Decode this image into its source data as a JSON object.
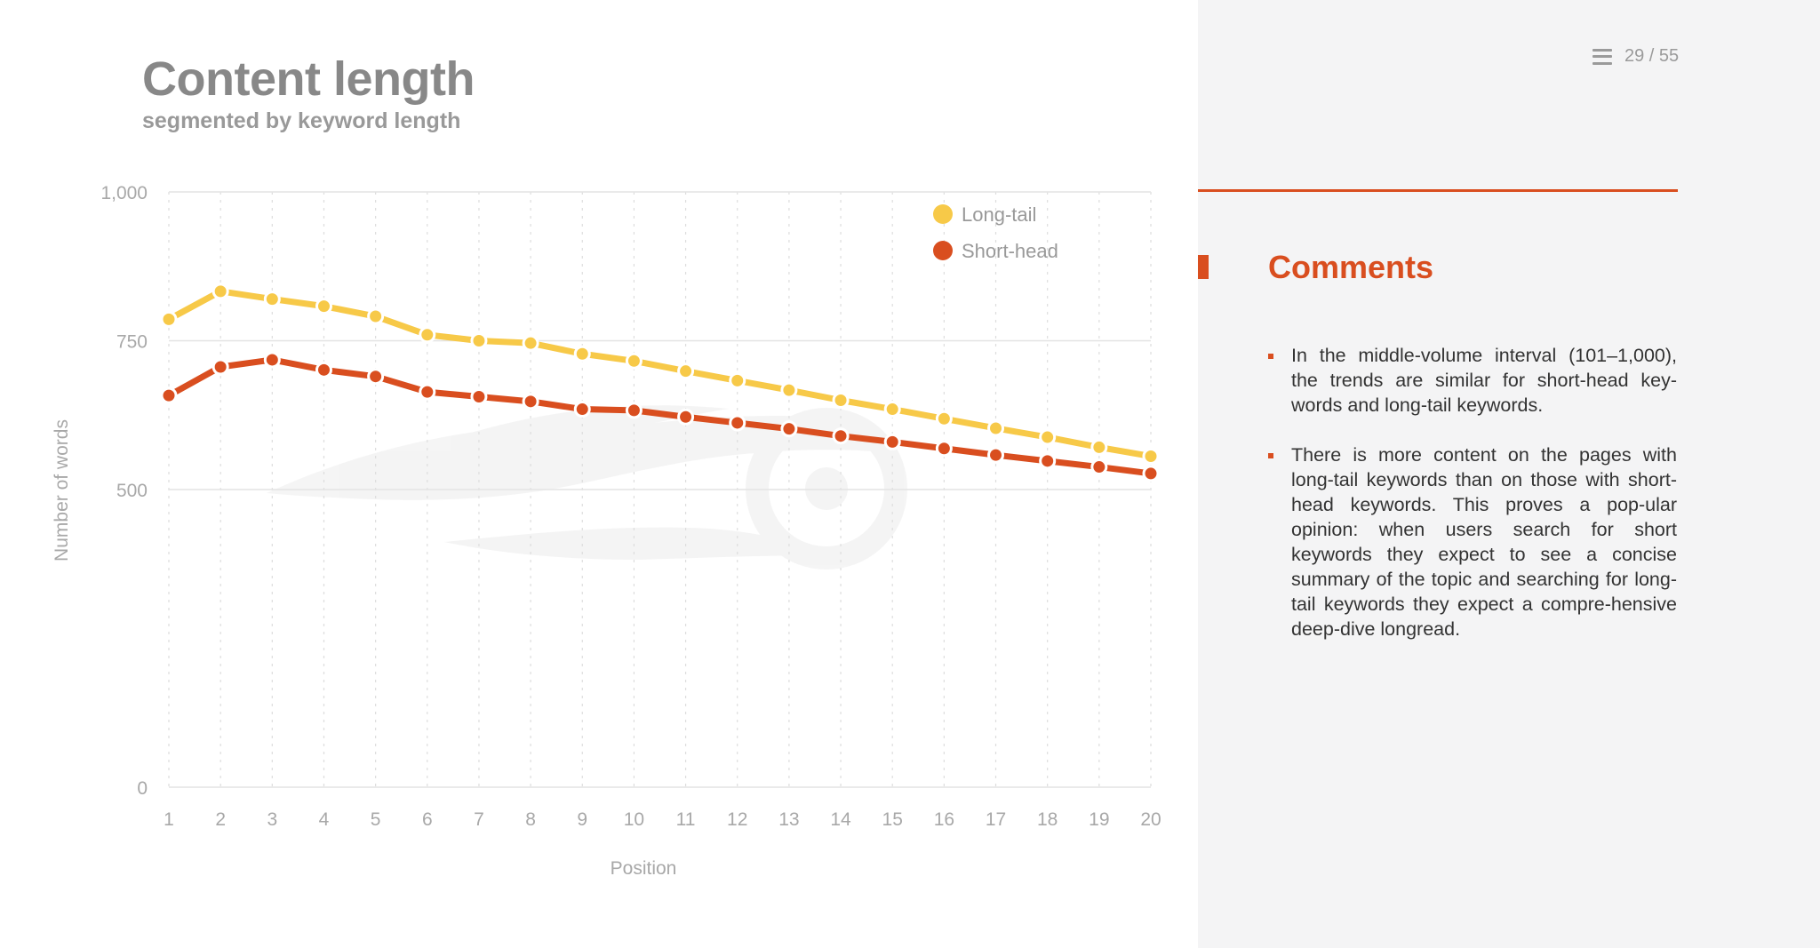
{
  "header": {
    "title": "Content length",
    "subtitle": "segmented by keyword length"
  },
  "pager": {
    "menu_icon": "hamburger-menu-icon",
    "label": "29 / 55"
  },
  "comments": {
    "title": "Comments",
    "items": [
      "In the middle-volume interval (101–1,000), the trends are similar for short-head key-words and long-tail keywords.",
      "There is more content on the pages with long-tail keywords than on those with short-head keywords. This proves a pop-ular opinion: when users search for short keywords they expect to see a concise summary of the topic and searching for long-tail keywords they expect a compre-hensive deep-dive longread."
    ]
  },
  "colors": {
    "accent": "#d94e1f",
    "long_tail": "#f7c948",
    "short_head": "#d94e1f"
  },
  "chart_data": {
    "type": "line",
    "title": "Content length",
    "subtitle": "segmented by keyword length",
    "xlabel": "Position",
    "ylabel": "Number of words",
    "x": [
      1,
      2,
      3,
      4,
      5,
      6,
      7,
      8,
      9,
      10,
      11,
      12,
      13,
      14,
      15,
      16,
      17,
      18,
      19,
      20
    ],
    "ylim": [
      0,
      1000
    ],
    "yticks": [
      0,
      500,
      750,
      1000
    ],
    "ytick_labels": [
      "0",
      "500",
      "750",
      "1,000"
    ],
    "grid": true,
    "legend_position": "top-right",
    "series": [
      {
        "name": "Long-tail",
        "color": "#f7c948",
        "values": [
          786,
          833,
          820,
          808,
          791,
          760,
          750,
          746,
          728,
          716,
          699,
          683,
          667,
          650,
          635,
          619,
          603,
          588,
          571,
          556
        ]
      },
      {
        "name": "Short-head",
        "color": "#d94e1f",
        "values": [
          658,
          706,
          718,
          701,
          690,
          664,
          656,
          648,
          635,
          633,
          622,
          612,
          602,
          590,
          580,
          569,
          558,
          548,
          538,
          527
        ]
      }
    ]
  }
}
